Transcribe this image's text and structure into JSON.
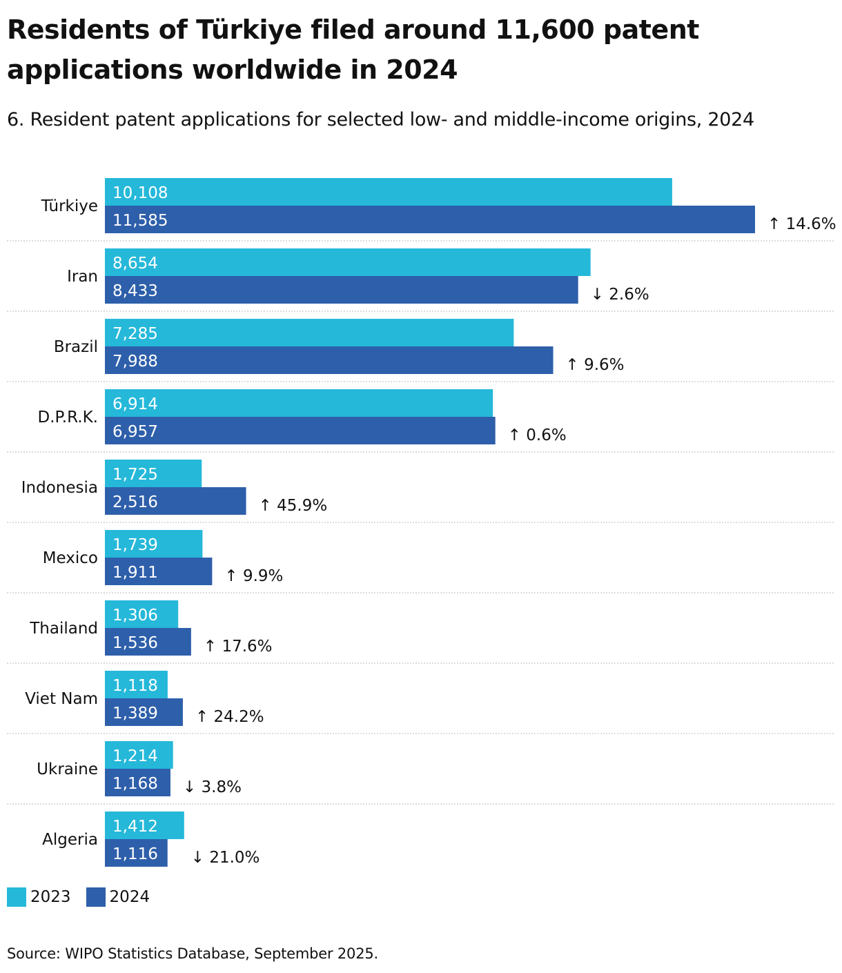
{
  "title": "Residents of Türkiye filed around 11,600 patent applications worldwide in 2024",
  "subtitle": "6. Resident patent applications for selected low- and middle-income origins, 2024",
  "source": "Source: WIPO Statistics Database, September 2025.",
  "colors": {
    "series_2023": "#25b8d9",
    "series_2024": "#2e5faa",
    "separator": "#c8c8c8",
    "text": "#111111",
    "bar_label": "#ffffff"
  },
  "chart_data": {
    "type": "bar",
    "orientation": "horizontal",
    "categories": [
      "Türkiye",
      "Iran",
      "Brazil",
      "D.P.R.K.",
      "Indonesia",
      "Mexico",
      "Thailand",
      "Viet Nam",
      "Ukraine",
      "Algeria"
    ],
    "series": [
      {
        "name": "2023",
        "values": [
          10108,
          8654,
          7285,
          6914,
          1725,
          1739,
          1306,
          1118,
          1214,
          1412
        ],
        "labels": [
          "10,108",
          "8,654",
          "7,285",
          "6,914",
          "1,725",
          "1,739",
          "1,306",
          "1,118",
          "1,214",
          "1,412"
        ]
      },
      {
        "name": "2024",
        "values": [
          11585,
          8433,
          7988,
          6957,
          2516,
          1911,
          1536,
          1389,
          1168,
          1116
        ],
        "labels": [
          "11,585",
          "8,433",
          "7,988",
          "6,957",
          "2,516",
          "1,911",
          "1,536",
          "1,389",
          "1,168",
          "1,116"
        ]
      }
    ],
    "change_labels": [
      "↑ 14.6%",
      "↓ 2.6%",
      "↑ 9.6%",
      "↑ 0.6%",
      "↑ 45.9%",
      "↑ 9.9%",
      "↑ 17.6%",
      "↑ 24.2%",
      "↓ 3.8%",
      "↓ 21.0%"
    ],
    "xlim": [
      0,
      12300
    ],
    "grid": false,
    "legend_placement": "bottom-left"
  }
}
